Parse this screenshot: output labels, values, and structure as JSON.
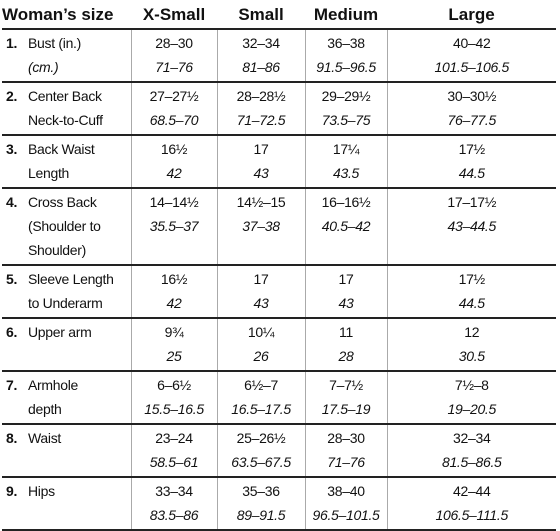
{
  "table": {
    "header": [
      "Woman’s size",
      "X-Small",
      "Small",
      "Medium",
      "Large"
    ],
    "rows": [
      {
        "number": "1.",
        "label": [
          "Bust (in.)",
          "(cm.)"
        ],
        "values": [
          [
            "28–30",
            "71–76"
          ],
          [
            "32–34",
            "81–86"
          ],
          [
            "36–38",
            "91.5–96.5"
          ],
          [
            "40–42",
            "101.5–106.5"
          ]
        ]
      },
      {
        "number": "2.",
        "label": [
          "Center Back",
          "Neck-to-Cuff"
        ],
        "values": [
          [
            "27–27½",
            "68.5–70"
          ],
          [
            "28–28½",
            "71–72.5"
          ],
          [
            "29–29½",
            "73.5–75"
          ],
          [
            "30–30½",
            "76–77.5"
          ]
        ]
      },
      {
        "number": "3.",
        "label": [
          "Back Waist",
          "Length"
        ],
        "values": [
          [
            "16½",
            "42"
          ],
          [
            "17",
            "43"
          ],
          [
            "17¼",
            "43.5"
          ],
          [
            "17½",
            "44.5"
          ]
        ]
      },
      {
        "number": "4.",
        "label": [
          "Cross Back",
          "(Shoulder to",
          "Shoulder)"
        ],
        "values": [
          [
            "14–14½",
            "35.5–37"
          ],
          [
            "14½–15",
            "37–38"
          ],
          [
            "16–16½",
            "40.5–42"
          ],
          [
            "17–17½",
            "43–44.5"
          ]
        ]
      },
      {
        "number": "5.",
        "label": [
          "Sleeve Length",
          "to Underarm"
        ],
        "values": [
          [
            "16½",
            "42"
          ],
          [
            "17",
            "43"
          ],
          [
            "17",
            "43"
          ],
          [
            "17½",
            "44.5"
          ]
        ]
      },
      {
        "number": "6.",
        "label": [
          "Upper arm"
        ],
        "values": [
          [
            "9¾",
            "25"
          ],
          [
            "10¼",
            "26"
          ],
          [
            "11",
            "28"
          ],
          [
            "12",
            "30.5"
          ]
        ]
      },
      {
        "number": "7.",
        "label": [
          "Armhole",
          "depth"
        ],
        "values": [
          [
            "6–6½",
            "15.5–16.5"
          ],
          [
            "6½–7",
            "16.5–17.5"
          ],
          [
            "7–7½",
            "17.5–19"
          ],
          [
            "7½–8",
            "19–20.5"
          ]
        ]
      },
      {
        "number": "8.",
        "label": [
          "Waist"
        ],
        "values": [
          [
            "23–24",
            "58.5–61"
          ],
          [
            "25–26½",
            "63.5–67.5"
          ],
          [
            "28–30",
            "71–76"
          ],
          [
            "32–34",
            "81.5–86.5"
          ]
        ]
      },
      {
        "number": "9.",
        "label": [
          "Hips"
        ],
        "values": [
          [
            "33–34",
            "83.5–86"
          ],
          [
            "35–36",
            "89–91.5"
          ],
          [
            "38–40",
            "96.5–101.5"
          ],
          [
            "42–44",
            "106.5–111.5"
          ]
        ]
      }
    ]
  }
}
